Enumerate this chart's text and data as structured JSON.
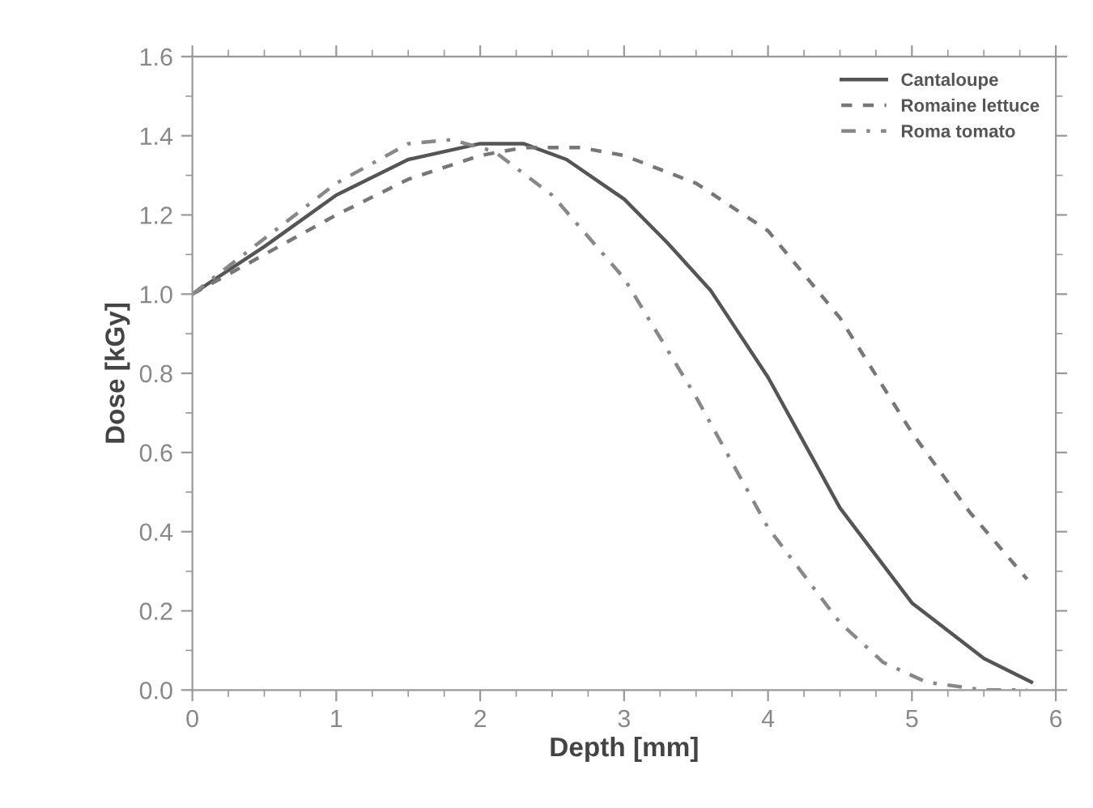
{
  "chart_data": {
    "type": "line",
    "xlabel": "Depth [mm]",
    "ylabel": "Dose [kGy]",
    "xlim": [
      0,
      6
    ],
    "ylim": [
      0,
      1.6
    ],
    "xticks": [
      0,
      1,
      2,
      3,
      4,
      5,
      6
    ],
    "yticks": [
      {
        "value": 0,
        "label": "0.0"
      },
      0.2,
      0.4,
      0.6,
      0.8,
      {
        "value": 1,
        "label": "1.0"
      },
      1.2,
      1.4,
      1.6
    ],
    "grid": false,
    "legend": "top right",
    "marker": "none",
    "series": [
      {
        "name": "Cantaloupe",
        "color": "#555555",
        "line_style": "solid",
        "x": [
          0,
          0.5,
          1,
          1.5,
          2,
          2.3,
          2.6,
          3,
          3.3,
          3.6,
          4,
          4.5,
          5,
          5.5,
          5.83
        ],
        "values": [
          1.0,
          1.12,
          1.25,
          1.34,
          1.38,
          1.38,
          1.34,
          1.24,
          1.13,
          1.01,
          0.79,
          0.46,
          0.22,
          0.08,
          0.02
        ]
      },
      {
        "name": "Romaine lettuce",
        "color": "#777777",
        "line_style": "dashed",
        "x": [
          0,
          0.5,
          1,
          1.5,
          2,
          2.3,
          2.7,
          3,
          3.5,
          4,
          4.5,
          5,
          5.4,
          5.8
        ],
        "values": [
          1.0,
          1.1,
          1.2,
          1.29,
          1.35,
          1.37,
          1.37,
          1.35,
          1.28,
          1.16,
          0.94,
          0.65,
          0.45,
          0.28
        ]
      },
      {
        "name": "Roma tomato",
        "color": "#888888",
        "line_style": "dashdot",
        "x": [
          0,
          0.5,
          1,
          1.5,
          1.8,
          2.1,
          2.5,
          3,
          3.5,
          4,
          4.5,
          4.8,
          5.1,
          5.5,
          5.8
        ],
        "values": [
          1.0,
          1.14,
          1.28,
          1.38,
          1.39,
          1.36,
          1.25,
          1.04,
          0.74,
          0.41,
          0.17,
          0.07,
          0.02,
          0.0,
          0.0
        ]
      }
    ]
  }
}
